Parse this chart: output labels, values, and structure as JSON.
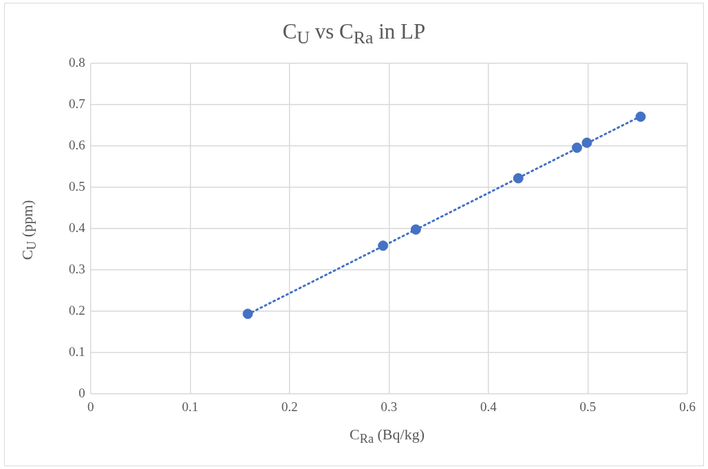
{
  "chart_data": {
    "type": "scatter",
    "title": "C$_{U}$ vs C$_{Ra}$ in LP",
    "xlabel": "C$_{Ra}$ (Bq/kg)",
    "ylabel": "C$_{U}$ (ppm)",
    "series": [
      {
        "color": "#4472c4",
        "x": [
          0.158,
          0.294,
          0.327,
          0.43,
          0.489,
          0.499,
          0.553
        ],
        "values": [
          0.194,
          0.359,
          0.398,
          0.522,
          0.596,
          0.608,
          0.671
        ],
        "marker": "circle"
      },
      {
        "type": "line",
        "color": "#4472c4",
        "x": [
          0.158,
          0.553
        ],
        "values": [
          0.193,
          0.672
        ],
        "line_style": "dotted",
        "marker": "none"
      }
    ],
    "xlim": [
      0,
      0.6
    ],
    "xticks": [
      0,
      0.1,
      0.2,
      0.3,
      0.4,
      0.5,
      0.6
    ],
    "ylim": [
      0,
      0.8
    ],
    "yticks": [
      0,
      0.1,
      0.2,
      0.3,
      0.4,
      0.5,
      0.6,
      0.7,
      0.8
    ],
    "grid": true,
    "legend": false
  }
}
